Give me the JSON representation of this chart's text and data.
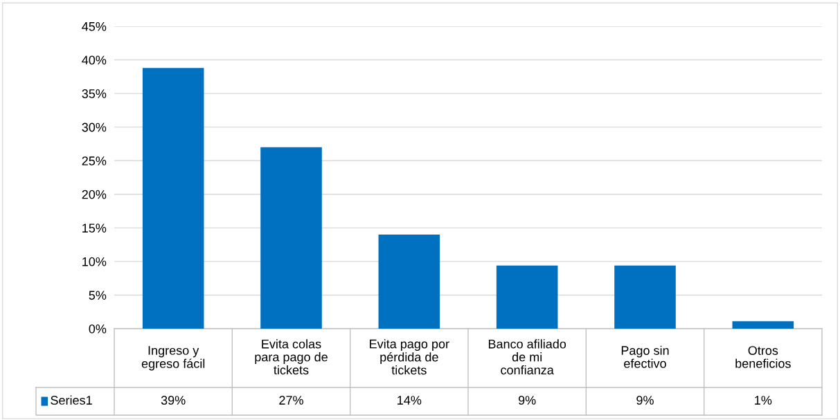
{
  "chart_data": {
    "type": "bar",
    "categories": [
      "Ingreso y\negreso fácil",
      "Evita colas\npara pago de\ntickets",
      "Evita pago por\npérdida de\ntickets",
      "Banco afiliado\nde mi\nconfianza",
      "Pago sin\nefectivo",
      "Otros\nbeneficios"
    ],
    "series": [
      {
        "name": "Series1",
        "color": "#0070c0",
        "values": [
          38.8,
          27.0,
          14.0,
          9.4,
          9.4,
          1.1
        ],
        "value_labels": [
          "39%",
          "27%",
          "14%",
          "9%",
          "9%",
          "1%"
        ]
      }
    ],
    "ylim": [
      0,
      45
    ],
    "yticks": [
      {
        "value": 0,
        "label": "0%"
      },
      {
        "value": 5,
        "label": "5%"
      },
      {
        "value": 10,
        "label": "10%"
      },
      {
        "value": 15,
        "label": "15%"
      },
      {
        "value": 20,
        "label": "20%"
      },
      {
        "value": 25,
        "label": "25%"
      },
      {
        "value": 30,
        "label": "30%"
      },
      {
        "value": 35,
        "label": "35%"
      },
      {
        "value": 40,
        "label": "40%"
      },
      {
        "value": 45,
        "label": "45%"
      }
    ],
    "grid": "y",
    "legend": "bottom"
  }
}
